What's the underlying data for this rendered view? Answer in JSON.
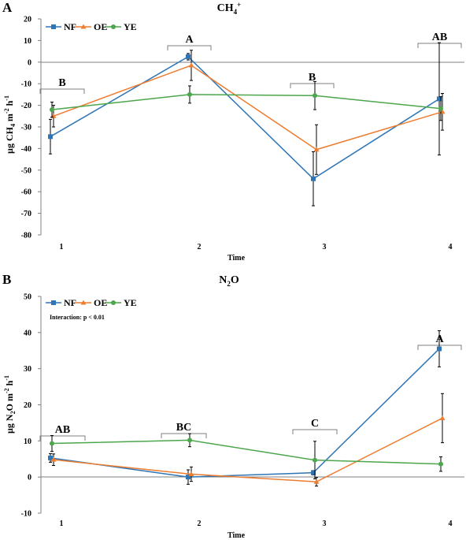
{
  "colors": {
    "NF": "#2e75b6",
    "OE": "#ed7d31",
    "YE": "#4ca64c",
    "axis": "#808080",
    "bracket": "#7f7f7f",
    "error_bar": "#000000"
  },
  "chart_data": [
    {
      "type": "line",
      "panel_label": "A",
      "title_main": "CH",
      "title_sub": "4",
      "title_sup": "+",
      "xlabel": "Time",
      "ylabel": {
        "prefix": "µg CH",
        "sub": "4",
        "mid": " m",
        "sup1": "-2",
        "mid2": " h",
        "sup2": "-1"
      },
      "categories": [
        "1",
        "2",
        "3",
        "4"
      ],
      "ylim": [
        -80,
        20
      ],
      "yticks": [
        20,
        10,
        0,
        -10,
        -20,
        -30,
        -40,
        -50,
        -60,
        -70,
        -80
      ],
      "legend": [
        "NF",
        "OE",
        "YE"
      ],
      "legend_position": "top-left",
      "annotation": "",
      "series": [
        {
          "name": "NF",
          "marker": "square",
          "values": [
            -34.5,
            2.5,
            -54.0,
            -17.0
          ],
          "error": [
            8,
            1.5,
            12.5,
            26
          ]
        },
        {
          "name": "OE",
          "marker": "triangle",
          "values": [
            -25.0,
            -1.5,
            -40.5,
            -23.0
          ],
          "error": [
            5,
            7,
            11.5,
            8.5
          ]
        },
        {
          "name": "YE",
          "marker": "circle",
          "values": [
            -22.0,
            -15.0,
            -15.5,
            -21.5
          ],
          "error": [
            3.5,
            4,
            6.5,
            5.5
          ]
        }
      ],
      "groups": [
        {
          "label": "B",
          "at": 1
        },
        {
          "label": "A",
          "at": 2
        },
        {
          "label": "B",
          "at": 3
        },
        {
          "label": "AB",
          "at": 4
        }
      ]
    },
    {
      "type": "line",
      "panel_label": "B",
      "title_main": "N",
      "title_sub": "2",
      "title_rest": "O",
      "xlabel": "Time",
      "ylabel": {
        "prefix": "µg N",
        "sub": "2",
        "mid": "O m",
        "sup1": "-2",
        "mid2": " h",
        "sup2": "-1"
      },
      "categories": [
        "1",
        "2",
        "3",
        "4"
      ],
      "ylim": [
        -10,
        50
      ],
      "yticks": [
        50,
        40,
        30,
        20,
        10,
        0,
        -10
      ],
      "legend": [
        "NF",
        "OE",
        "YE"
      ],
      "legend_position": "top-left",
      "annotation": "Interaction: p < 0.01",
      "series": [
        {
          "name": "NF",
          "marker": "square",
          "values": [
            5.3,
            0.0,
            1.2,
            35.5
          ],
          "error": [
            1.2,
            2,
            0.6,
            5
          ]
        },
        {
          "name": "OE",
          "marker": "triangle",
          "values": [
            4.8,
            0.8,
            -1.3,
            16.3
          ],
          "error": [
            1.6,
            2,
            1.2,
            6.8
          ]
        },
        {
          "name": "YE",
          "marker": "circle",
          "values": [
            9.3,
            10.2,
            4.7,
            3.6
          ],
          "error": [
            2.2,
            1.8,
            5.2,
            2
          ]
        }
      ],
      "groups": [
        {
          "label": "AB",
          "at": 1
        },
        {
          "label": "BC",
          "at": 2
        },
        {
          "label": "C",
          "at": 3
        },
        {
          "label": "A",
          "at": 4
        }
      ]
    }
  ]
}
